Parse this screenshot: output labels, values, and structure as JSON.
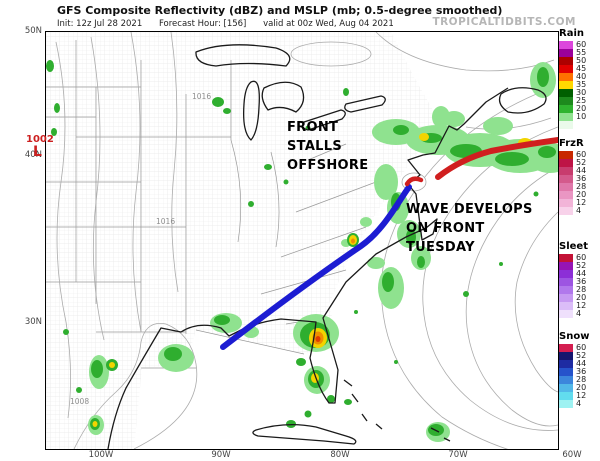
{
  "header": {
    "title": "GFS Composite Reflectivity (dBZ) and MSLP (mb; 0.5-degree smoothed)",
    "init": "Init: 12z Jul 28 2021",
    "forecast_hour": "Forecast Hour: [156]",
    "valid": "valid at 00z Wed, Aug 04 2021",
    "watermark": "TROPICALTIDBITS.COM"
  },
  "axes": {
    "lat": [
      "50N",
      "40N",
      "30N"
    ],
    "lon": [
      "100W",
      "90W",
      "80W",
      "70W",
      "60W"
    ]
  },
  "annotations": {
    "front_stall": {
      "lines": [
        "FRONT",
        "STALLS",
        "OFFSHORE"
      ]
    },
    "wave": {
      "lines": [
        "WAVE DEVELOPS",
        "ON FRONT",
        "TUESDAY"
      ]
    }
  },
  "map": {
    "low_pressure_value": "1002",
    "low_pressure_symbol": "L",
    "isobar_labels": [
      {
        "text": "1016"
      },
      {
        "text": "1016"
      },
      {
        "text": "1008"
      }
    ],
    "front_colors": {
      "cold_front": "#1c1cd2",
      "warm_front": "#d01f1f"
    }
  },
  "legend": {
    "groups": [
      {
        "id": "rain",
        "label": "Rain",
        "entries": [
          {
            "v": "60",
            "c": "#dc46dc"
          },
          {
            "v": "55",
            "c": "#9b009b"
          },
          {
            "v": "50",
            "c": "#ad0000"
          },
          {
            "v": "45",
            "c": "#e10000"
          },
          {
            "v": "40",
            "c": "#ff7000"
          },
          {
            "v": "35",
            "c": "#ffd800"
          },
          {
            "v": "30",
            "c": "#005f00"
          },
          {
            "v": "25",
            "c": "#1d8a1d"
          },
          {
            "v": "20",
            "c": "#2fb42f"
          },
          {
            "v": "10",
            "c": "#8fe28f"
          },
          {
            "v": "",
            "c": "#eafaea"
          }
        ]
      },
      {
        "id": "frzr",
        "label": "FrzR",
        "entries": [
          {
            "v": "60",
            "c": "#c82800"
          },
          {
            "v": "52",
            "c": "#be1446"
          },
          {
            "v": "44",
            "c": "#c83c6e"
          },
          {
            "v": "36",
            "c": "#d45a8c"
          },
          {
            "v": "28",
            "c": "#e078aa"
          },
          {
            "v": "20",
            "c": "#ea96c3"
          },
          {
            "v": "12",
            "c": "#f2b4d8"
          },
          {
            "v": "4",
            "c": "#f8d2ea"
          }
        ]
      },
      {
        "id": "sleet",
        "label": "Sleet",
        "entries": [
          {
            "v": "60",
            "c": "#c31236"
          },
          {
            "v": "52",
            "c": "#9614b4"
          },
          {
            "v": "44",
            "c": "#8c2fd7"
          },
          {
            "v": "36",
            "c": "#9d55e2"
          },
          {
            "v": "28",
            "c": "#b178ec"
          },
          {
            "v": "20",
            "c": "#c79af2"
          },
          {
            "v": "12",
            "c": "#dbbdf8"
          },
          {
            "v": "4",
            "c": "#efe0fc"
          }
        ]
      },
      {
        "id": "snow",
        "label": "Snow",
        "entries": [
          {
            "v": "60",
            "c": "#d41e50"
          },
          {
            "v": "52",
            "c": "#16166e"
          },
          {
            "v": "44",
            "c": "#1e2ba2"
          },
          {
            "v": "36",
            "c": "#2653cb"
          },
          {
            "v": "28",
            "c": "#3c86dc"
          },
          {
            "v": "20",
            "c": "#52b8e8"
          },
          {
            "v": "12",
            "c": "#62dcee"
          },
          {
            "v": "4",
            "c": "#9ef2f2"
          }
        ]
      }
    ]
  }
}
